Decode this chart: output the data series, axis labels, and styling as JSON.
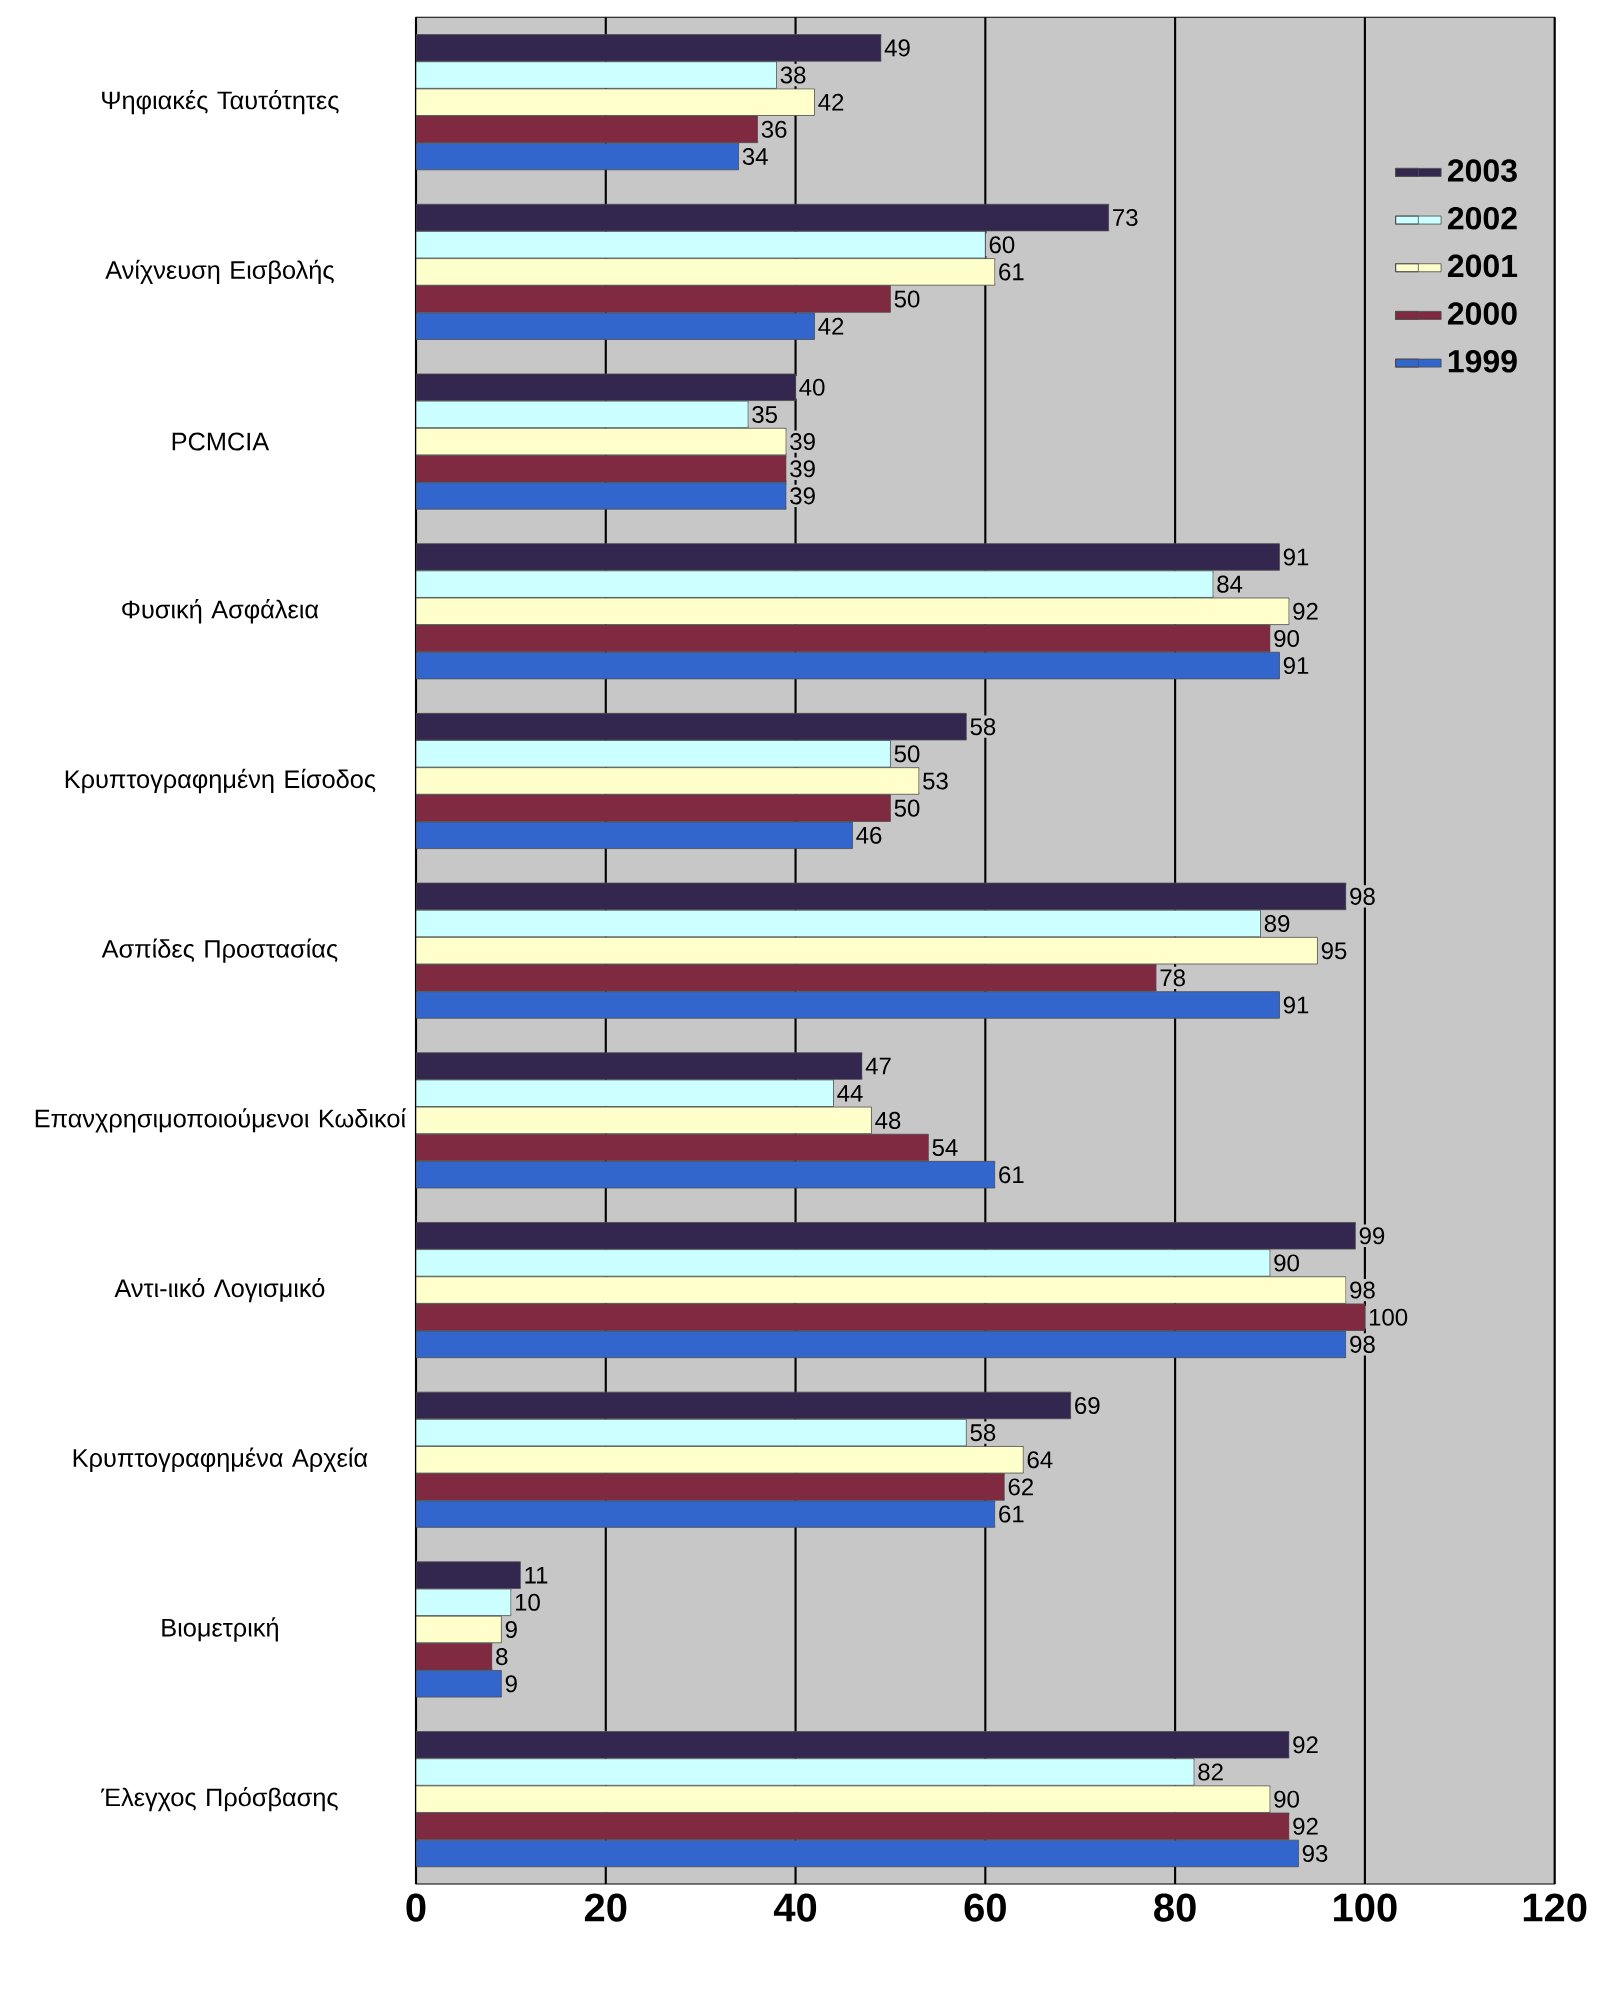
{
  "chart_data": {
    "type": "bar",
    "orientation": "horizontal",
    "categories": [
      "Ψηφιακές Ταυτότητες",
      "Ανίχνευση Εισβολής",
      "PCMCIA",
      "Φυσική Ασφάλεια",
      "Κρυπτογραφημένη Είσοδος",
      "Ασπίδες Προστασίας",
      "Επανχρησιμοποιούμενοι Κωδικοί",
      "Αντι-ιικό Λογισμικό",
      "Κρυπτογραφημένα Αρχεία",
      "Βιομετρική",
      "Έλεγχος Πρόσβασης"
    ],
    "series": [
      {
        "name": "2003",
        "color": "#33264f",
        "values": [
          49,
          73,
          40,
          91,
          58,
          98,
          47,
          99,
          69,
          11,
          92
        ]
      },
      {
        "name": "2002",
        "color": "#ccffff",
        "values": [
          38,
          60,
          35,
          84,
          50,
          89,
          44,
          90,
          58,
          10,
          82
        ]
      },
      {
        "name": "2001",
        "color": "#ffffcc",
        "values": [
          42,
          61,
          39,
          92,
          53,
          95,
          48,
          98,
          64,
          9,
          90
        ]
      },
      {
        "name": "2000",
        "color": "#7f2a40",
        "values": [
          36,
          50,
          39,
          90,
          50,
          78,
          54,
          100,
          62,
          8,
          92
        ]
      },
      {
        "name": "1999",
        "color": "#3366cc",
        "values": [
          34,
          42,
          39,
          91,
          46,
          91,
          61,
          98,
          61,
          9,
          93
        ]
      }
    ],
    "xlim": [
      0,
      120
    ],
    "xticks": [
      0,
      20,
      40,
      60,
      80,
      100,
      120
    ],
    "grid": "x",
    "legend": "top right",
    "data_labels": true
  }
}
